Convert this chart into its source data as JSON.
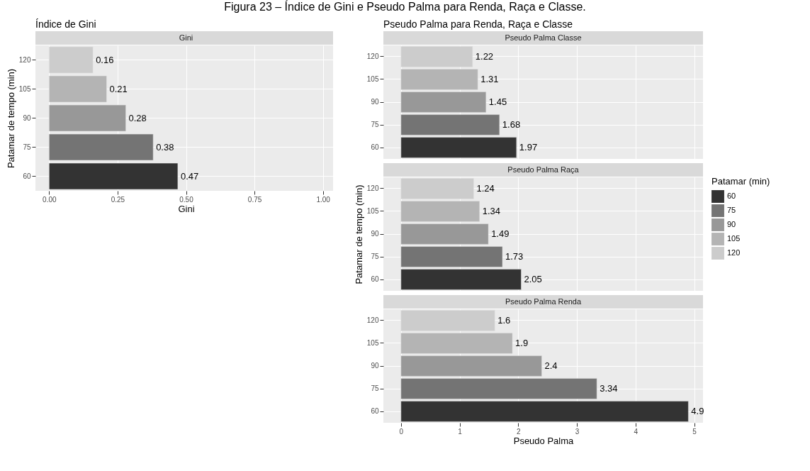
{
  "chart_data": [
    {
      "type": "bar",
      "orientation": "horizontal",
      "title": "Índice de Gini",
      "subtitle": "Gini",
      "xlabel": "Gini",
      "ylabel": "Patamar de tempo (min)",
      "annotations": [
        "Figura 23 – Índice de Gini e Pseudo Palma para Renda, Raça e Classe."
      ],
      "categories": [
        "120",
        "105",
        "90",
        "75",
        "60"
      ],
      "values": [
        0.16,
        0.21,
        0.28,
        0.38,
        0.47
      ],
      "colors": [
        "#cccccc",
        "#b4b4b4",
        "#989898",
        "#747474",
        "#333333"
      ],
      "xlim": [
        -0.05,
        1.05
      ],
      "xticks": [
        {
          "value": 0,
          "label": "0.00"
        },
        {
          "value": 0.25,
          "label": "0.25"
        },
        {
          "value": 0.5,
          "label": "0.50"
        },
        {
          "value": 0.75,
          "label": "0.75"
        },
        {
          "value": 1,
          "label": "1.00"
        }
      ],
      "grid": true,
      "data_labels": true,
      "legend": false
    },
    {
      "type": "bar",
      "orientation": "horizontal",
      "title": "Pseudo Palma para Renda, Raça e Classe",
      "subtitle": "Pseudo Palma Classe",
      "categories": [
        "120",
        "105",
        "90",
        "75",
        "60"
      ],
      "values": [
        1.22,
        1.31,
        1.45,
        1.68,
        1.97
      ],
      "colors": [
        "#cccccc",
        "#b4b4b4",
        "#989898",
        "#747474",
        "#333333"
      ],
      "xlim": [
        -0.3,
        5.15
      ],
      "xticks": [
        0,
        1,
        2,
        3,
        4,
        5
      ],
      "tick_labels": "y",
      "grid": true,
      "data_labels": true,
      "legend": false
    },
    {
      "type": "bar",
      "orientation": "horizontal",
      "subtitle": "Pseudo Palma Raça",
      "ylabel": "Patamar de tempo (min)",
      "legend_title": "Patamar (min)",
      "categories": [
        "120",
        "105",
        "90",
        "75",
        "60"
      ],
      "series": [
        {
          "name": "60",
          "color": "#333333",
          "values": [
            null,
            null,
            null,
            null,
            2.05
          ]
        },
        {
          "name": "75",
          "color": "#747474",
          "values": [
            null,
            null,
            null,
            1.73,
            null
          ]
        },
        {
          "name": "90",
          "color": "#989898",
          "values": [
            null,
            null,
            1.49,
            null,
            null
          ]
        },
        {
          "name": "105",
          "color": "#b4b4b4",
          "values": [
            null,
            1.34,
            null,
            null,
            null
          ]
        },
        {
          "name": "120",
          "color": "#cccccc",
          "values": [
            1.24,
            null,
            null,
            null,
            null
          ]
        }
      ],
      "xlim": [
        -0.3,
        5.15
      ],
      "xticks": [
        0,
        1,
        2,
        3,
        4,
        5
      ],
      "tick_labels": "y",
      "grid": true,
      "data_labels": true,
      "legend": "right"
    },
    {
      "type": "bar",
      "orientation": "horizontal",
      "subtitle": "Pseudo Palma Renda",
      "xlabel": "Pseudo Palma",
      "categories": [
        "120",
        "105",
        "90",
        "75",
        "60"
      ],
      "values": [
        1.6,
        1.9,
        2.4,
        3.34,
        4.9
      ],
      "colors": [
        "#cccccc",
        "#b4b4b4",
        "#989898",
        "#747474",
        "#333333"
      ],
      "xlim": [
        -0.3,
        5.15
      ],
      "xticks": [
        0,
        1,
        2,
        3,
        4,
        5
      ],
      "grid": true,
      "data_labels": true,
      "legend": false
    }
  ]
}
